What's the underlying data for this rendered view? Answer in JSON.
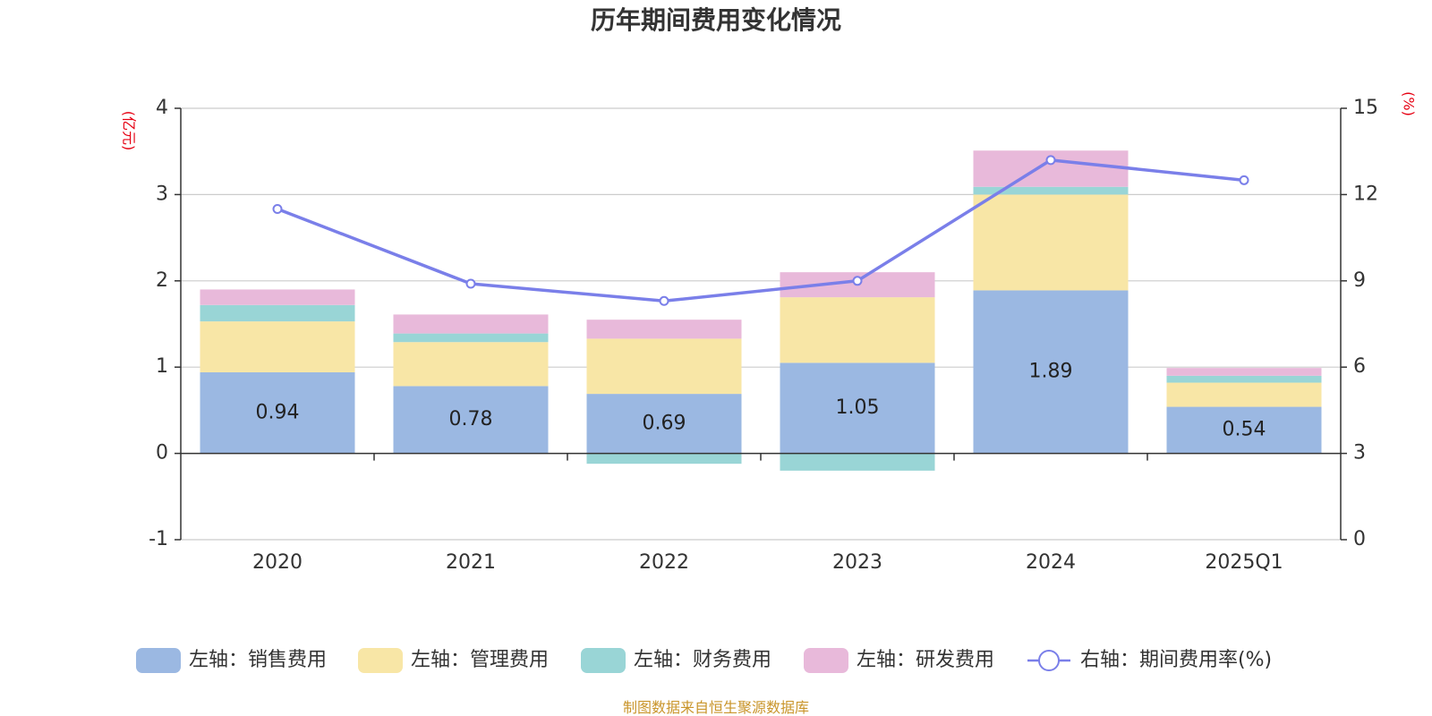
{
  "chart_data": {
    "type": "bar",
    "title": "历年期间费用变化情况",
    "categories": [
      "2020",
      "2021",
      "2022",
      "2023",
      "2024",
      "2025Q1"
    ],
    "y_left": {
      "unit": "(亿元)",
      "ylim": [
        -1,
        4
      ],
      "ticks": [
        -1,
        0,
        1,
        2,
        3,
        4
      ]
    },
    "y_right": {
      "unit": "(%)",
      "ylim": [
        0,
        15
      ],
      "ticks": [
        0,
        3,
        6,
        9,
        12,
        15
      ]
    },
    "series": [
      {
        "name": "左轴：销售费用",
        "axis": "left",
        "color": "#9bb8e2",
        "values": [
          0.94,
          0.78,
          0.69,
          1.05,
          1.89,
          0.54
        ],
        "labels": [
          "0.94",
          "0.78",
          "0.69",
          "1.05",
          "1.89",
          "0.54"
        ]
      },
      {
        "name": "左轴：管理费用",
        "axis": "left",
        "color": "#f8e6a6",
        "values": [
          0.59,
          0.51,
          0.64,
          0.76,
          1.11,
          0.28
        ]
      },
      {
        "name": "左轴：财务费用",
        "axis": "left",
        "color": "#99d5d6",
        "values": [
          0.19,
          0.1,
          -0.12,
          -0.2,
          0.09,
          0.08
        ]
      },
      {
        "name": "左轴：研发费用",
        "axis": "left",
        "color": "#e8b9da",
        "values": [
          0.18,
          0.22,
          0.22,
          0.29,
          0.42,
          0.09
        ]
      },
      {
        "name": "右轴：期间费用率(%)",
        "axis": "right",
        "type": "line",
        "color": "#7a7fe9",
        "values": [
          11.5,
          8.9,
          8.3,
          9.0,
          13.2,
          12.5
        ]
      }
    ],
    "grid": true,
    "legend_position": "bottom"
  },
  "source_text": "制图数据来自恒生聚源数据库"
}
